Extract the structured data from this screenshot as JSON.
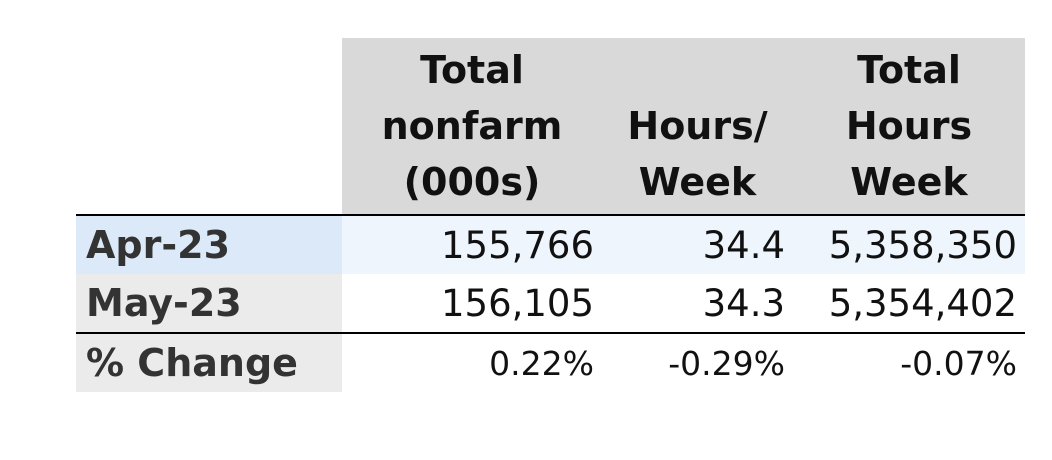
{
  "table": {
    "header": [
      [],
      [
        "Total",
        "nonfarm",
        "(000s)"
      ],
      [
        "Hours/",
        "Week"
      ],
      [
        "Total",
        "Hours",
        "Week"
      ]
    ],
    "rows": [
      [
        "Apr-23",
        "155,766",
        "34.4",
        "5,358,350"
      ],
      [
        "May-23",
        "156,105",
        "34.3",
        "5,354,402"
      ],
      [
        "% Change",
        "0.22%",
        "-0.29%",
        "-0.07%"
      ]
    ]
  }
}
